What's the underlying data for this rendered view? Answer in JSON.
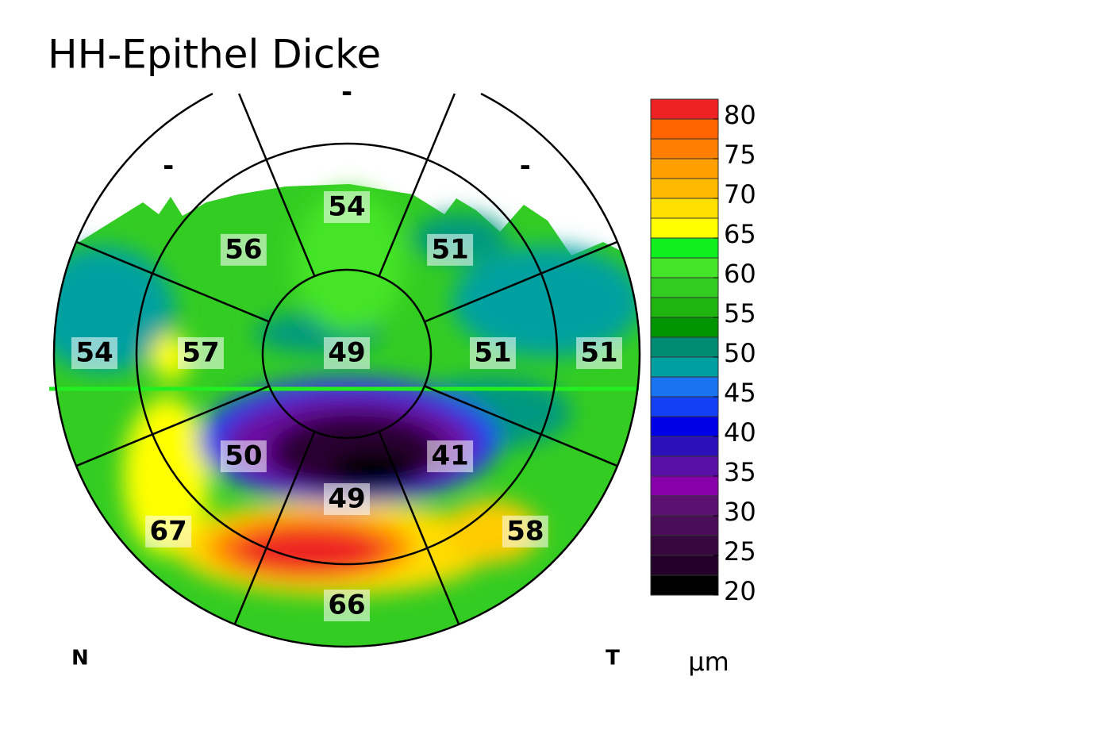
{
  "title": "HH-Epithel Dicke",
  "center": "49",
  "inner_ring": [
    "54",
    "51",
    "51",
    "41",
    "49",
    "50",
    "57",
    "56"
  ],
  "outer_ring": [
    "-",
    "-",
    "51",
    "58",
    "66",
    "67",
    "54",
    "-"
  ],
  "labels": {
    "nasal": "N",
    "temporal": "T",
    "unit": "µm"
  },
  "colorbar": {
    "range": [
      20,
      82.5
    ],
    "ticks": [
      80,
      75,
      70,
      65,
      60,
      55,
      50,
      45,
      40,
      35,
      30,
      25,
      20
    ],
    "colors": [
      "#000000",
      "#22002a",
      "#36083e",
      "#4a0e58",
      "#5c1070",
      "#8800aa",
      "#5a10a8",
      "#2c10b8",
      "#0000e8",
      "#1440f4",
      "#1a74f2",
      "#00a0a0",
      "#008c74",
      "#009400",
      "#20b410",
      "#30cc20",
      "#44e428",
      "#10f020",
      "#ffff00",
      "#ffe000",
      "#ffba00",
      "#ffa000",
      "#ff8000",
      "#ff6400",
      "#ee2222"
    ]
  }
}
